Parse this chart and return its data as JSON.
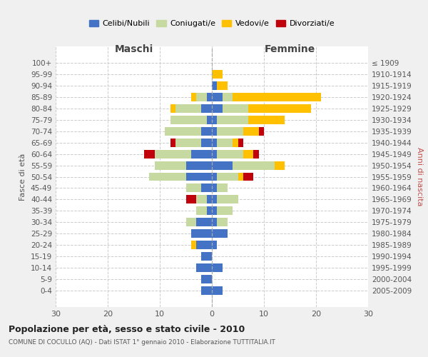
{
  "age_groups": [
    "100+",
    "95-99",
    "90-94",
    "85-89",
    "80-84",
    "75-79",
    "70-74",
    "65-69",
    "60-64",
    "55-59",
    "50-54",
    "45-49",
    "40-44",
    "35-39",
    "30-34",
    "25-29",
    "20-24",
    "15-19",
    "10-14",
    "5-9",
    "0-4"
  ],
  "birth_years": [
    "≤ 1909",
    "1910-1914",
    "1915-1919",
    "1920-1924",
    "1925-1929",
    "1930-1934",
    "1935-1939",
    "1940-1944",
    "1945-1949",
    "1950-1954",
    "1955-1959",
    "1960-1964",
    "1965-1969",
    "1970-1974",
    "1975-1979",
    "1980-1984",
    "1985-1989",
    "1990-1994",
    "1995-1999",
    "2000-2004",
    "2005-2009"
  ],
  "maschi": {
    "celibi": [
      0,
      0,
      0,
      1,
      2,
      1,
      2,
      2,
      4,
      5,
      5,
      2,
      1,
      1,
      3,
      4,
      3,
      2,
      3,
      2,
      2
    ],
    "coniugati": [
      0,
      0,
      0,
      2,
      5,
      7,
      7,
      5,
      7,
      6,
      7,
      3,
      2,
      2,
      2,
      0,
      0,
      0,
      0,
      0,
      0
    ],
    "vedovi": [
      0,
      0,
      0,
      1,
      1,
      0,
      0,
      0,
      0,
      0,
      0,
      0,
      0,
      0,
      0,
      0,
      1,
      0,
      0,
      0,
      0
    ],
    "divorziati": [
      0,
      0,
      0,
      0,
      0,
      0,
      0,
      1,
      2,
      0,
      0,
      0,
      2,
      0,
      0,
      0,
      0,
      0,
      0,
      0,
      0
    ]
  },
  "femmine": {
    "nubili": [
      0,
      0,
      1,
      2,
      2,
      1,
      1,
      1,
      1,
      4,
      1,
      1,
      1,
      1,
      1,
      3,
      1,
      0,
      2,
      0,
      2
    ],
    "coniugate": [
      0,
      0,
      0,
      2,
      5,
      6,
      5,
      3,
      5,
      8,
      4,
      2,
      4,
      3,
      2,
      0,
      0,
      0,
      0,
      0,
      0
    ],
    "vedove": [
      0,
      2,
      2,
      17,
      12,
      7,
      3,
      1,
      2,
      2,
      1,
      0,
      0,
      0,
      0,
      0,
      0,
      0,
      0,
      0,
      0
    ],
    "divorziate": [
      0,
      0,
      0,
      0,
      0,
      0,
      1,
      1,
      1,
      0,
      2,
      0,
      0,
      0,
      0,
      0,
      0,
      0,
      0,
      0,
      0
    ]
  },
  "colors": {
    "celibi": "#4472c4",
    "coniugati": "#c5d9a0",
    "vedovi": "#ffc000",
    "divorziati": "#c0000a"
  },
  "xlim": 30,
  "title": "Popolazione per età, sesso e stato civile - 2010",
  "subtitle": "COMUNE DI COCULLO (AQ) - Dati ISTAT 1° gennaio 2010 - Elaborazione TUTTITALIA.IT",
  "ylabel_left": "Fasce di età",
  "ylabel_right": "Anni di nascita",
  "xlabel_maschi": "Maschi",
  "xlabel_femmine": "Femmine",
  "legend_labels": [
    "Celibi/Nubili",
    "Coniugati/e",
    "Vedovi/e",
    "Divorziati/e"
  ],
  "bg_color": "#f0f0f0",
  "plot_bg": "#ffffff"
}
